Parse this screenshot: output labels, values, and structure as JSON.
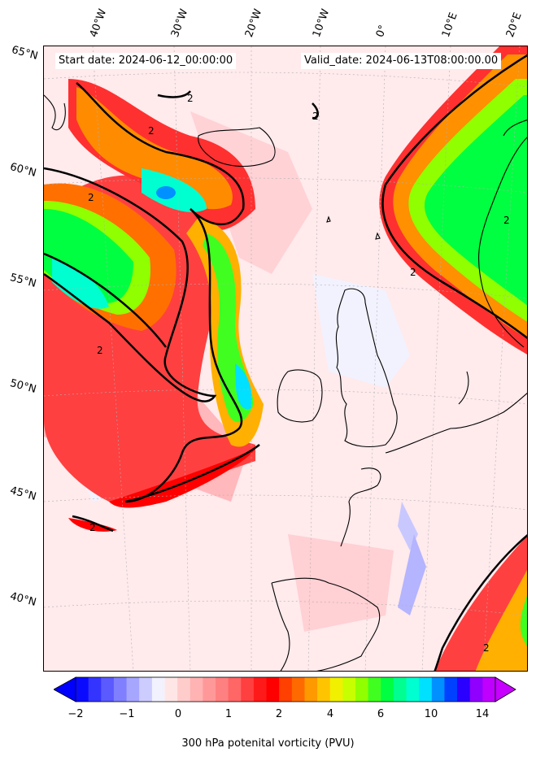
{
  "header": {
    "start_date": "Start date: 2024-06-12_00:00:00",
    "valid_date": "Valid_date: 2024-06-13T08:00:00.00"
  },
  "longitude_labels": [
    "40°W",
    "30°W",
    "20°W",
    "10°W",
    "0°",
    "10°E",
    "20°E"
  ],
  "latitude_labels": [
    "65°N",
    "60°N",
    "55°N",
    "50°N",
    "45°N",
    "40°N"
  ],
  "contour_label": "2",
  "colorbar": {
    "label": "300 hPa potenital vorticity (PVU)",
    "tick_labels": [
      "−2",
      "−1",
      "0",
      "1",
      "2",
      "4",
      "6",
      "10",
      "14"
    ],
    "colors": [
      "#0a0aff",
      "#3434ff",
      "#5a5aff",
      "#8080ff",
      "#a6a6ff",
      "#ccccff",
      "#f2f2ff",
      "#ffe6e6",
      "#ffcccc",
      "#ffb3b3",
      "#ff9999",
      "#ff8080",
      "#ff6666",
      "#ff4040",
      "#ff1a1a",
      "#ff0000",
      "#ff4000",
      "#ff6a00",
      "#ff9900",
      "#ffc400",
      "#f0f000",
      "#c8ff00",
      "#90ff00",
      "#40ff20",
      "#00ff40",
      "#00ff90",
      "#00ffd0",
      "#00e0ff",
      "#0090ff",
      "#0040ff",
      "#2a00ff",
      "#9000ff",
      "#c000ff"
    ],
    "extend_low_color": "#0000ff",
    "extend_high_color": "#c800ff"
  }
}
